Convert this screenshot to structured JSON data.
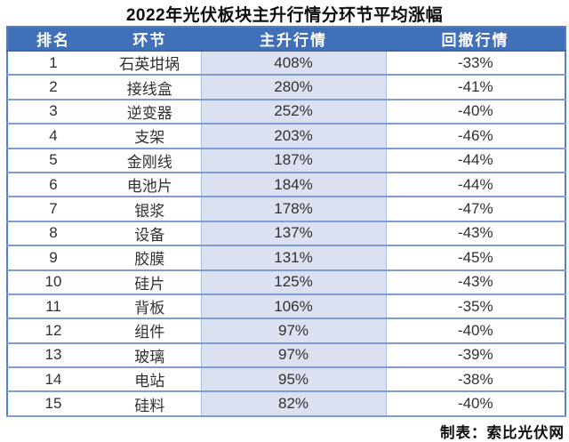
{
  "colors": {
    "header_bg": "#4070B8",
    "highlight_col": "#DCE1F2",
    "grid_line": "#7E9CD8",
    "outer_border": "#5580C2",
    "header_divider": "#3A67AE",
    "title_color": "#0D0D0D",
    "body_text": "#303030"
  },
  "chart_data": {
    "type": "table",
    "title": "2022年光伏板块主升行情分环节平均涨幅",
    "columns": [
      "排名",
      "环节",
      "主升行情",
      "回撤行情"
    ],
    "highlight_column": "主升行情",
    "highlight_column_index": 2,
    "source_note": "制表：索比光伏网",
    "categories": [
      "石英坩埚",
      "接线盒",
      "逆变器",
      "支架",
      "金刚线",
      "电池片",
      "银浆",
      "设备",
      "胶膜",
      "硅片",
      "背板",
      "组件",
      "玻璃",
      "电站",
      "硅料"
    ],
    "series": [
      {
        "name": "主升行情",
        "unit": "%",
        "values": [
          408,
          280,
          252,
          203,
          187,
          184,
          178,
          137,
          131,
          125,
          106,
          97,
          97,
          95,
          82
        ]
      },
      {
        "name": "回撤行情",
        "unit": "%",
        "values": [
          -33,
          -41,
          -40,
          -46,
          -44,
          -44,
          -47,
          -43,
          -45,
          -43,
          -35,
          -40,
          -39,
          -38,
          -40
        ]
      }
    ],
    "rows": [
      {
        "rank": "1",
        "segment": "石英坩埚",
        "rally": "408%",
        "drawdown": "-33%"
      },
      {
        "rank": "2",
        "segment": "接线盒",
        "rally": "280%",
        "drawdown": "-41%"
      },
      {
        "rank": "3",
        "segment": "逆变器",
        "rally": "252%",
        "drawdown": "-40%"
      },
      {
        "rank": "4",
        "segment": "支架",
        "rally": "203%",
        "drawdown": "-46%"
      },
      {
        "rank": "5",
        "segment": "金刚线",
        "rally": "187%",
        "drawdown": "-44%"
      },
      {
        "rank": "6",
        "segment": "电池片",
        "rally": "184%",
        "drawdown": "-44%"
      },
      {
        "rank": "7",
        "segment": "银浆",
        "rally": "178%",
        "drawdown": "-47%"
      },
      {
        "rank": "8",
        "segment": "设备",
        "rally": "137%",
        "drawdown": "-43%"
      },
      {
        "rank": "9",
        "segment": "胶膜",
        "rally": "131%",
        "drawdown": "-45%"
      },
      {
        "rank": "10",
        "segment": "硅片",
        "rally": "125%",
        "drawdown": "-43%"
      },
      {
        "rank": "11",
        "segment": "背板",
        "rally": "106%",
        "drawdown": "-35%"
      },
      {
        "rank": "12",
        "segment": "组件",
        "rally": "97%",
        "drawdown": "-40%"
      },
      {
        "rank": "13",
        "segment": "玻璃",
        "rally": "97%",
        "drawdown": "-39%"
      },
      {
        "rank": "14",
        "segment": "电站",
        "rally": "95%",
        "drawdown": "-38%"
      },
      {
        "rank": "15",
        "segment": "硅料",
        "rally": "82%",
        "drawdown": "-40%"
      }
    ]
  }
}
